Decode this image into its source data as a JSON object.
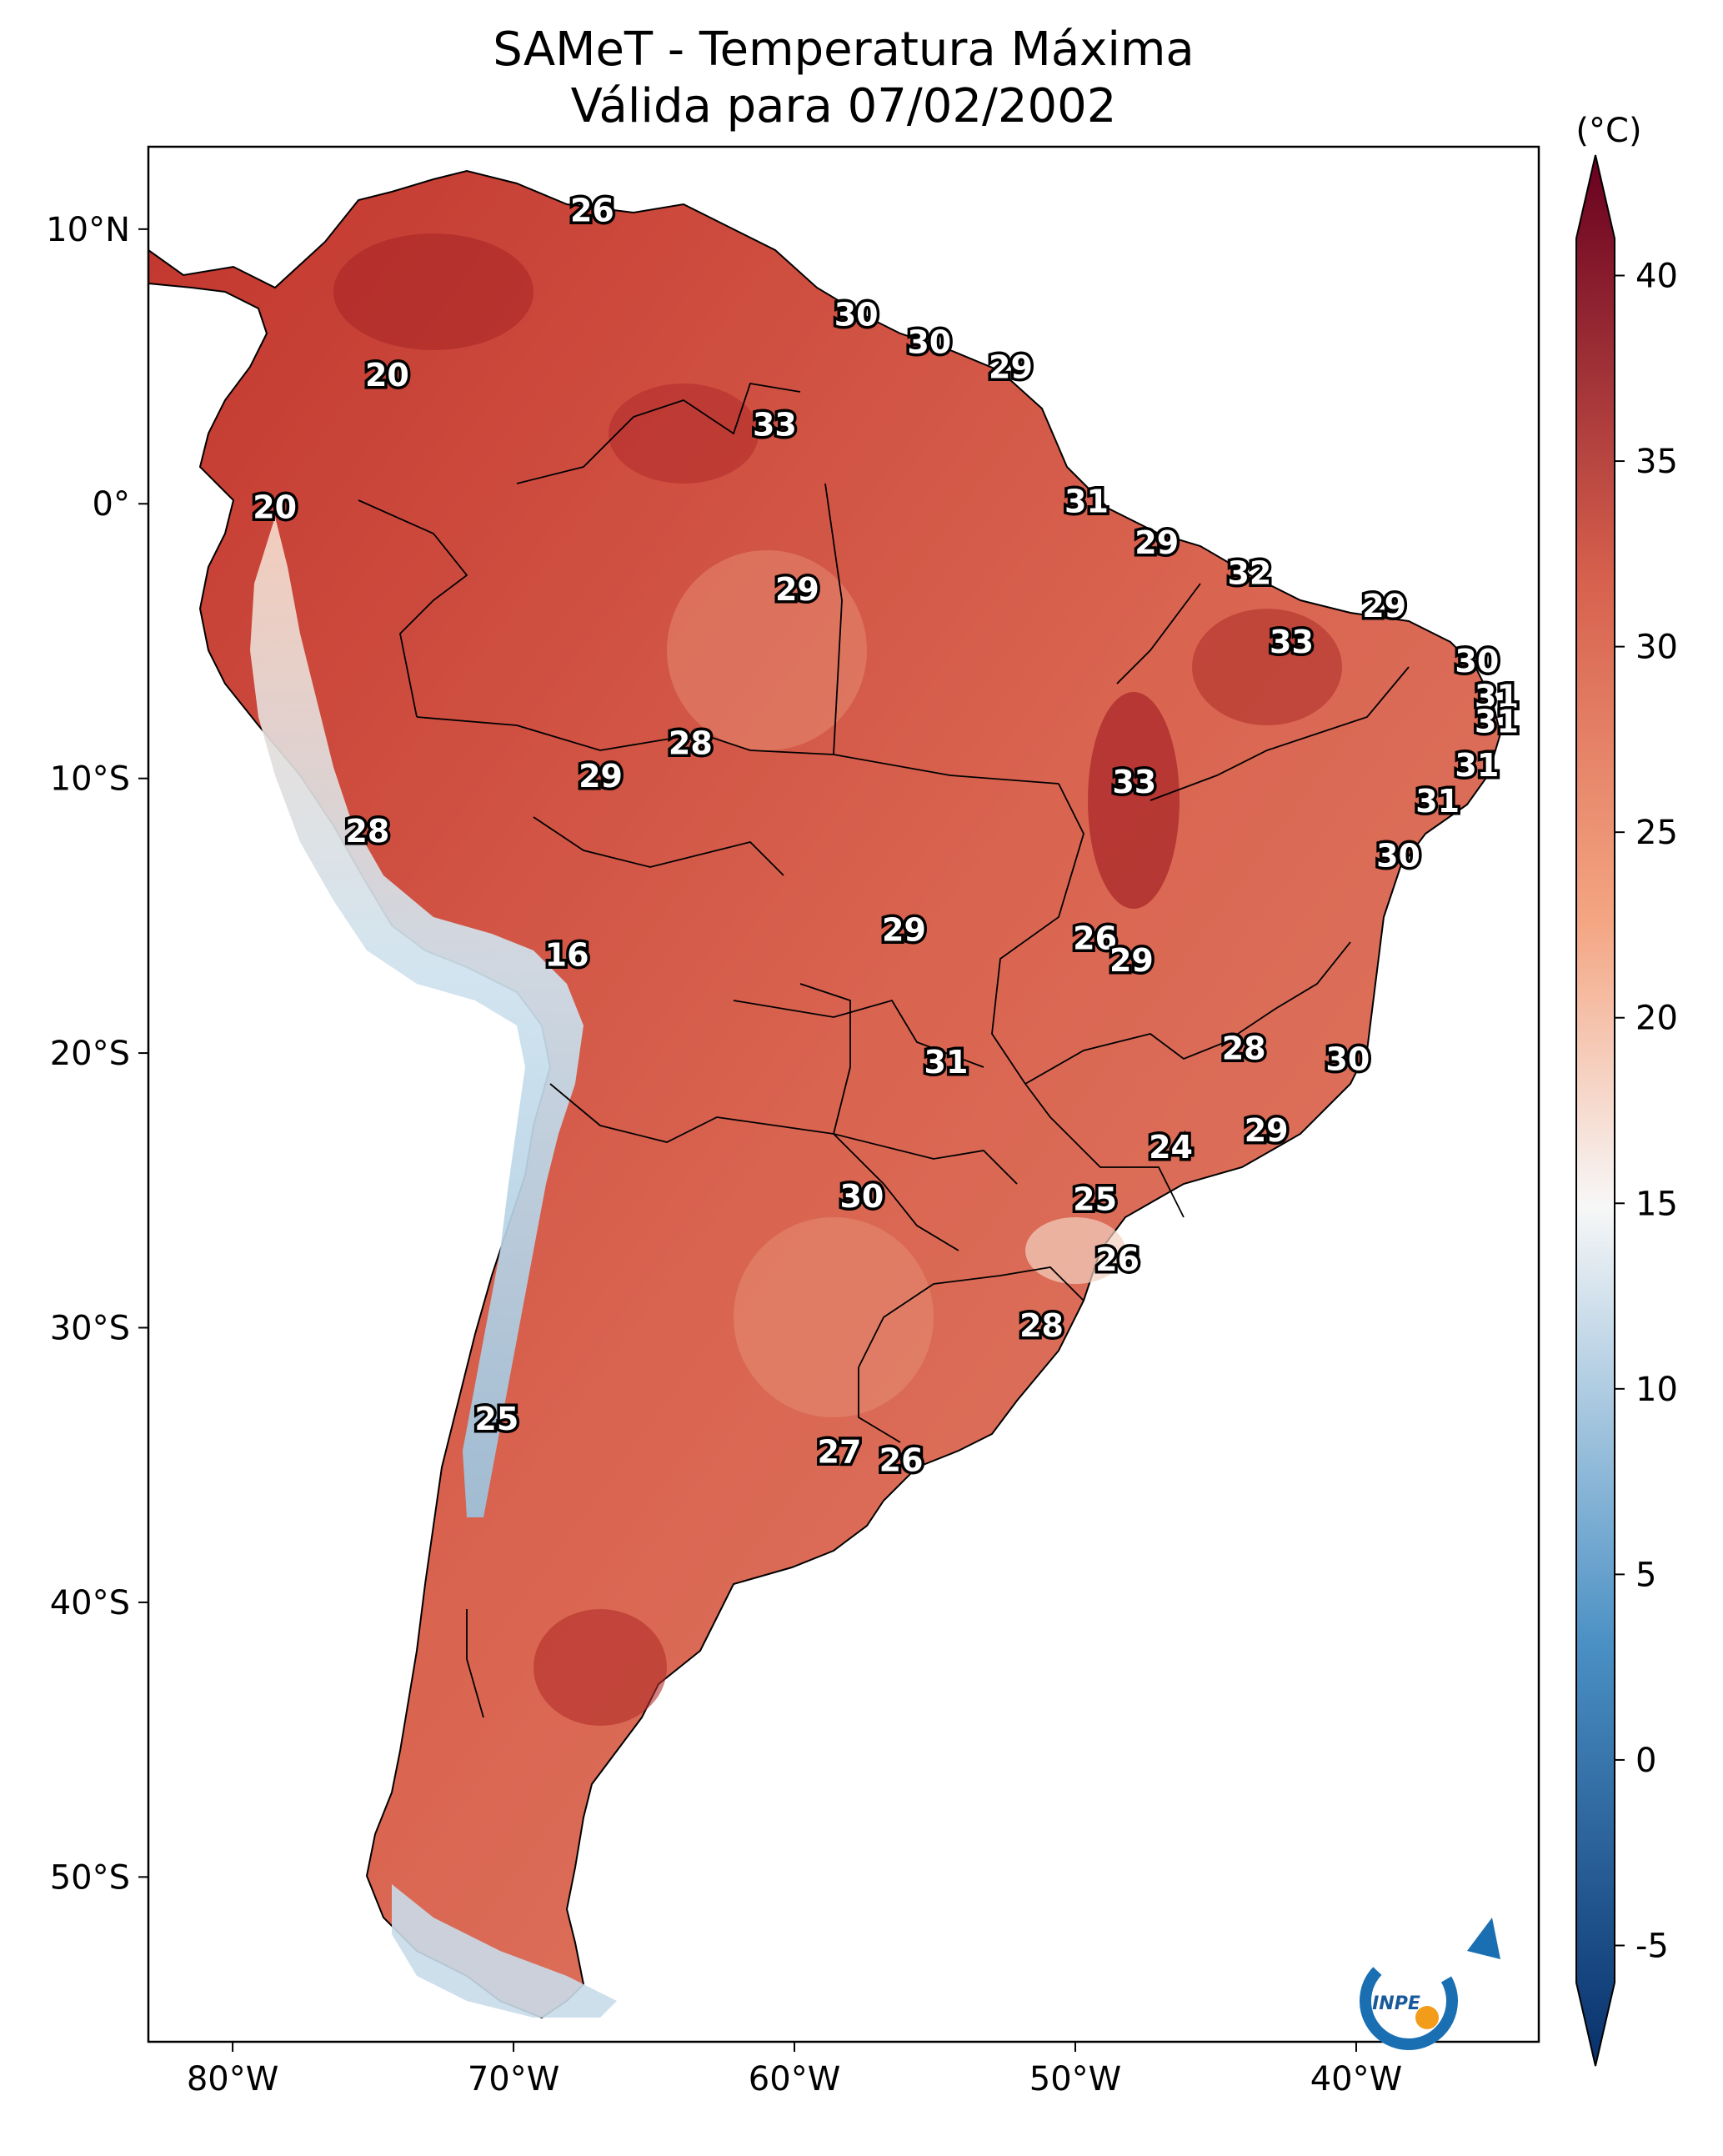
{
  "title": {
    "line1": "SAMeT - Temperatura Máxima",
    "line2": "Válida para 07/02/2002"
  },
  "map": {
    "lon_ticks": [
      "80°W",
      "70°W",
      "60°W",
      "50°W",
      "40°W"
    ],
    "lat_ticks": [
      "10°N",
      "0°",
      "10°S",
      "20°S",
      "30°S",
      "40°S",
      "50°S"
    ],
    "lon_range": [
      -83,
      -33.5
    ],
    "lat_range": [
      13,
      -56
    ]
  },
  "colorbar": {
    "units": "(°C)",
    "ticks": [
      "40",
      "35",
      "30",
      "25",
      "20",
      "15",
      "10",
      "5",
      "0",
      "-5"
    ],
    "range": [
      -6,
      41
    ],
    "colors": {
      "cold": "#08306b",
      "cool": "#4a90c4",
      "mild": "#f7f7f7",
      "warm": "#f4a582",
      "hot": "#d6604d",
      "very_hot": "#67001f"
    }
  },
  "logo": {
    "text": "INPE"
  },
  "city_labels": [
    {
      "text": "26",
      "lon": -67.2,
      "lat": 10.6
    },
    {
      "text": "20",
      "lon": -74.5,
      "lat": 4.6
    },
    {
      "text": "30",
      "lon": -57.8,
      "lat": 6.8
    },
    {
      "text": "30",
      "lon": -55.2,
      "lat": 5.8
    },
    {
      "text": "29",
      "lon": -52.3,
      "lat": 4.9
    },
    {
      "text": "33",
      "lon": -60.7,
      "lat": 2.8
    },
    {
      "text": "20",
      "lon": -78.5,
      "lat": -0.2
    },
    {
      "text": "31",
      "lon": -49.6,
      "lat": 0.0
    },
    {
      "text": "29",
      "lon": -47.1,
      "lat": -1.5
    },
    {
      "text": "32",
      "lon": -43.8,
      "lat": -2.6
    },
    {
      "text": "29",
      "lon": -59.9,
      "lat": -3.2
    },
    {
      "text": "29",
      "lon": -39.0,
      "lat": -3.8
    },
    {
      "text": "33",
      "lon": -42.3,
      "lat": -5.1
    },
    {
      "text": "30",
      "lon": -35.7,
      "lat": -5.8
    },
    {
      "text": "31",
      "lon": -35.0,
      "lat": -7.1
    },
    {
      "text": "31",
      "lon": -35.0,
      "lat": -8.0
    },
    {
      "text": "28",
      "lon": -63.7,
      "lat": -8.8
    },
    {
      "text": "29",
      "lon": -66.9,
      "lat": -10.0
    },
    {
      "text": "33",
      "lon": -47.9,
      "lat": -10.2
    },
    {
      "text": "31",
      "lon": -35.7,
      "lat": -9.6
    },
    {
      "text": "31",
      "lon": -37.1,
      "lat": -10.9
    },
    {
      "text": "28",
      "lon": -75.2,
      "lat": -12.0
    },
    {
      "text": "30",
      "lon": -38.5,
      "lat": -12.9
    },
    {
      "text": "29",
      "lon": -56.1,
      "lat": -15.6
    },
    {
      "text": "26",
      "lon": -49.3,
      "lat": -15.9
    },
    {
      "text": "16",
      "lon": -68.1,
      "lat": -16.5
    },
    {
      "text": "29",
      "lon": -48.0,
      "lat": -16.7
    },
    {
      "text": "28",
      "lon": -44.0,
      "lat": -19.9
    },
    {
      "text": "31",
      "lon": -54.6,
      "lat": -20.4
    },
    {
      "text": "30",
      "lon": -40.3,
      "lat": -20.3
    },
    {
      "text": "29",
      "lon": -43.2,
      "lat": -22.9
    },
    {
      "text": "24",
      "lon": -46.6,
      "lat": -23.5
    },
    {
      "text": "25",
      "lon": -49.3,
      "lat": -25.4
    },
    {
      "text": "30",
      "lon": -57.6,
      "lat": -25.3
    },
    {
      "text": "26",
      "lon": -48.5,
      "lat": -27.6
    },
    {
      "text": "28",
      "lon": -51.2,
      "lat": -30.0
    },
    {
      "text": "25",
      "lon": -70.6,
      "lat": -33.4
    },
    {
      "text": "27",
      "lon": -58.4,
      "lat": -34.6
    },
    {
      "text": "26",
      "lon": -56.2,
      "lat": -34.9
    }
  ]
}
